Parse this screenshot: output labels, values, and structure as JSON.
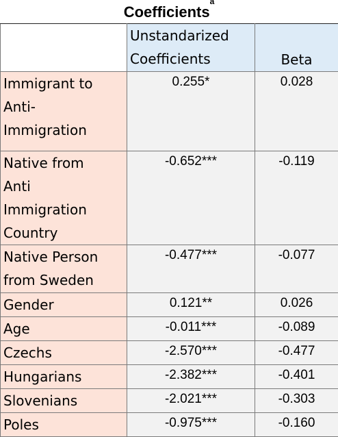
{
  "title": {
    "text": "Coefficients",
    "superscript": "a"
  },
  "header": {
    "unstandardized_line1": "Unstandarized",
    "unstandardized_line2": "Coefficients",
    "beta": "Beta"
  },
  "rows": [
    {
      "label": [
        "Immigrant to",
        "Anti-",
        "Immigration"
      ],
      "unstd": "0.255*",
      "beta": "0.028"
    },
    {
      "label": [
        "Native from",
        "Anti",
        "Immigration",
        "Country"
      ],
      "unstd": "-0.652***",
      "beta": "-0.119"
    },
    {
      "label": [
        "Native Person",
        "from Sweden"
      ],
      "unstd": "-0.477***",
      "beta": "-0.077"
    },
    {
      "label": [
        "Gender"
      ],
      "unstd": "0.121**",
      "beta": "0.026"
    },
    {
      "label": [
        "Age"
      ],
      "unstd": "-0.011***",
      "beta": "-0.089"
    },
    {
      "label": [
        "Czechs"
      ],
      "unstd": "-2.570***",
      "beta": "-0.477"
    },
    {
      "label": [
        "Hungarians"
      ],
      "unstd": "-2.382***",
      "beta": "-0.401"
    },
    {
      "label": [
        "Slovenians"
      ],
      "unstd": "-2.021***",
      "beta": "-0.303"
    },
    {
      "label": [
        "Poles"
      ],
      "unstd": "-0.975***",
      "beta": "-0.160"
    }
  ],
  "colors": {
    "label_bg": "#fde3d9",
    "header_bg": "#ddebf7",
    "value_bg": "#f2f2f2"
  }
}
